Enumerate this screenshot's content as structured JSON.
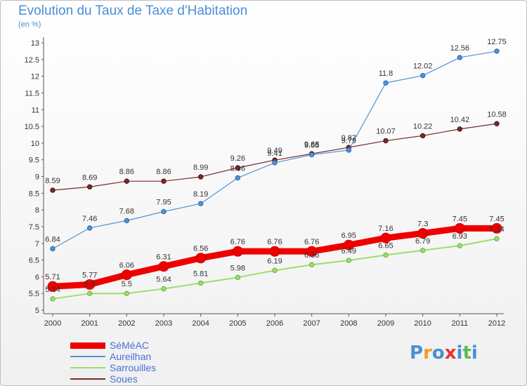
{
  "title": "Evolution du Taux de Taxe d'Habitation",
  "subtitle": "(en %)",
  "logo": "Proxiti",
  "chart_data": {
    "type": "line",
    "x": [
      "2000",
      "2001",
      "2002",
      "2003",
      "2004",
      "2005",
      "2006",
      "2007",
      "2008",
      "2009",
      "2010",
      "2011",
      "2012"
    ],
    "ylim": [
      5,
      13
    ],
    "yticks": [
      "5",
      "5.5",
      "6",
      "6.5",
      "7",
      "7.5",
      "8",
      "8.5",
      "9",
      "9.5",
      "10",
      "10.5",
      "11",
      "11.5",
      "12",
      "12.5",
      "13"
    ],
    "grid": false,
    "legend": "bottom-left",
    "series": [
      {
        "name": "SéMéAC",
        "color": "#ee0000",
        "values": [
          5.71,
          5.77,
          6.06,
          6.31,
          6.56,
          6.76,
          6.76,
          6.76,
          6.95,
          7.16,
          7.3,
          7.45,
          7.45
        ]
      },
      {
        "name": "Aureilhan",
        "color": "#4e94d4",
        "values": [
          6.84,
          7.46,
          7.68,
          7.95,
          8.19,
          8.96,
          9.41,
          9.65,
          9.79,
          11.8,
          12.02,
          12.56,
          12.75
        ]
      },
      {
        "name": "Sarrouilles",
        "color": "#9fdd6a",
        "values": [
          5.34,
          5.5,
          5.5,
          5.64,
          5.81,
          5.98,
          6.19,
          6.36,
          6.49,
          6.65,
          6.79,
          6.93,
          7.14
        ]
      },
      {
        "name": "Soues",
        "color": "#7a2a2a",
        "values": [
          8.59,
          8.69,
          8.86,
          8.86,
          8.99,
          9.26,
          9.49,
          9.68,
          9.87,
          10.07,
          10.22,
          10.42,
          10.58
        ]
      }
    ],
    "point_labels": {
      "SéMéAC": [
        "5.71",
        "5.77",
        "6.06",
        "6.31",
        "6.56",
        "6.76",
        "6.76",
        "6.76",
        "6.95",
        "7.16",
        "7.3",
        "7.45",
        "7.45"
      ],
      "Aureilhan": [
        "6.84",
        "7.46",
        "7.68",
        "7.95",
        "8.19",
        "8.96",
        "9.41",
        "9.65",
        "9.79",
        "11.8",
        "12.02",
        "12.56",
        "12.75"
      ],
      "Sarrouilles": [
        "5.34",
        "5.5",
        "5.5",
        "5.64",
        "5.81",
        "5.98",
        "6.19",
        "6.36",
        "6.49",
        "6.65",
        "6.79",
        "6.93",
        "7.14"
      ],
      "Soues": [
        "8.59",
        "8.69",
        "8.86",
        "8.86",
        "8.99",
        "9.26",
        "9.49",
        "9.68",
        "9.87",
        "10.07",
        "10.22",
        "10.42",
        "10.58"
      ]
    }
  }
}
